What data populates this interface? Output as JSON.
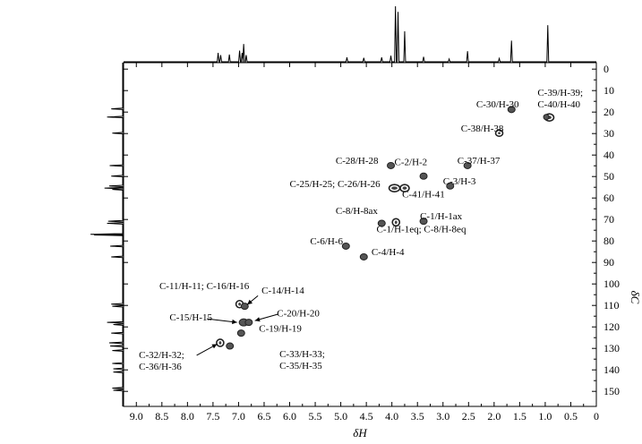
{
  "chart_data": {
    "type": "scatter",
    "title": "",
    "xlabel": "δH",
    "ylabel": "δC",
    "xlim": [
      9.25,
      0
    ],
    "ylim": [
      -3,
      157
    ],
    "x_ticks": [
      "9.0",
      "8.5",
      "8.0",
      "7.5",
      "7.0",
      "6.5",
      "6.0",
      "5.5",
      "5.0",
      "4.5",
      "4.0",
      "3.5",
      "3.0",
      "2.5",
      "2.0",
      "1.5",
      "1.0",
      "0.5",
      "0"
    ],
    "x_tick_values": [
      9.0,
      8.5,
      8.0,
      7.5,
      7.0,
      6.5,
      6.0,
      5.5,
      5.0,
      4.5,
      4.0,
      3.5,
      3.0,
      2.5,
      2.0,
      1.5,
      1.0,
      0.5,
      0
    ],
    "y_ticks": [
      "0",
      "10",
      "20",
      "30",
      "40",
      "50",
      "60",
      "70",
      "80",
      "90",
      "100",
      "110",
      "120",
      "130",
      "140",
      "150"
    ],
    "y_tick_values": [
      0,
      10,
      20,
      30,
      40,
      50,
      60,
      70,
      80,
      90,
      100,
      110,
      120,
      130,
      140,
      150
    ],
    "points": [
      {
        "x": 0.92,
        "y": 22.5,
        "rx": 5,
        "ry": 4,
        "ring": true
      },
      {
        "x": 0.98,
        "y": 22.3,
        "rx": 3,
        "ry": 3,
        "ring": false
      },
      {
        "x": 1.66,
        "y": 18.8,
        "rx": 4,
        "ry": 3.5,
        "ring": false
      },
      {
        "x": 1.9,
        "y": 29.8,
        "rx": 4,
        "ry": 3.5,
        "ring": true
      },
      {
        "x": 2.52,
        "y": 44.9,
        "rx": 4,
        "ry": 3.5,
        "ring": false
      },
      {
        "x": 4.02,
        "y": 44.9,
        "rx": 4,
        "ry": 3.5,
        "ring": false
      },
      {
        "x": 3.38,
        "y": 49.8,
        "rx": 4,
        "ry": 3.5,
        "ring": false
      },
      {
        "x": 2.86,
        "y": 54.4,
        "rx": 4,
        "ry": 3.5,
        "ring": false
      },
      {
        "x": 3.95,
        "y": 55.4,
        "rx": 6,
        "ry": 4,
        "ring": true
      },
      {
        "x": 3.75,
        "y": 55.4,
        "rx": 5,
        "ry": 4,
        "ring": true
      },
      {
        "x": 4.2,
        "y": 71.8,
        "rx": 4,
        "ry": 3.5,
        "ring": false
      },
      {
        "x": 3.92,
        "y": 71.3,
        "rx": 4,
        "ry": 4,
        "ring": true
      },
      {
        "x": 3.38,
        "y": 70.8,
        "rx": 4,
        "ry": 3.5,
        "ring": false
      },
      {
        "x": 4.9,
        "y": 82.4,
        "rx": 4,
        "ry": 3.5,
        "ring": false
      },
      {
        "x": 4.55,
        "y": 87.4,
        "rx": 4,
        "ry": 3.5,
        "ring": false
      },
      {
        "x": 6.98,
        "y": 109.4,
        "rx": 4,
        "ry": 4,
        "ring": true
      },
      {
        "x": 6.88,
        "y": 110.4,
        "rx": 4,
        "ry": 3.5,
        "ring": false
      },
      {
        "x": 6.9,
        "y": 117.9,
        "rx": 5,
        "ry": 4,
        "ring": false
      },
      {
        "x": 6.8,
        "y": 117.9,
        "rx": 4,
        "ry": 3.5,
        "ring": false
      },
      {
        "x": 6.95,
        "y": 122.9,
        "rx": 4,
        "ry": 3.5,
        "ring": false
      },
      {
        "x": 7.36,
        "y": 127.4,
        "rx": 4,
        "ry": 4,
        "ring": true
      },
      {
        "x": 7.17,
        "y": 128.9,
        "rx": 4,
        "ry": 3.5,
        "ring": false
      }
    ],
    "annotations": [
      {
        "text": "C-39/H-39;",
        "x": 1.15,
        "y": 12.5
      },
      {
        "text": "C-40/H-40",
        "x": 1.15,
        "y": 17.9
      },
      {
        "text": "C-30/H-30",
        "x": 2.35,
        "y": 17.9
      },
      {
        "text": "C-38/H-38",
        "x": 2.65,
        "y": 29.0
      },
      {
        "text": "C-28/H-28",
        "x": 5.1,
        "y": 44.0
      },
      {
        "text": "C-2/H-2",
        "x": 3.95,
        "y": 44.8
      },
      {
        "text": "C-37/H-37",
        "x": 2.72,
        "y": 44.0
      },
      {
        "text": "C-3/H-3",
        "x": 3.0,
        "y": 53.7
      },
      {
        "text": "C-25/H-25; C-26/H-26",
        "x": 6.0,
        "y": 54.9
      },
      {
        "text": "C-41/H-41",
        "x": 3.8,
        "y": 59.7
      },
      {
        "text": "C-8/H-8ax",
        "x": 5.1,
        "y": 67.4
      },
      {
        "text": "C-1/H-1ax",
        "x": 3.45,
        "y": 70.0
      },
      {
        "text": "C-1/H-1eq; C-8/H-8eq",
        "x": 4.3,
        "y": 76.0
      },
      {
        "text": "C-6/H-6",
        "x": 5.6,
        "y": 81.5
      },
      {
        "text": "C-4/H-4",
        "x": 4.4,
        "y": 86.6
      },
      {
        "text": "C-11/H-11; C-16/H-16",
        "x": 8.55,
        "y": 102.5
      },
      {
        "text": "C-14/H-14",
        "x": 6.55,
        "y": 104.6
      },
      {
        "text": "C-20/H-20",
        "x": 6.25,
        "y": 115.1
      },
      {
        "text": "C-15/H-15",
        "x": 8.35,
        "y": 117.1
      },
      {
        "text": "C-19/H-19",
        "x": 6.6,
        "y": 122.3
      },
      {
        "text": "C-32/H-32;",
        "x": 8.95,
        "y": 134.6
      },
      {
        "text": "C-36/H-36",
        "x": 8.95,
        "y": 140.0
      },
      {
        "text": "C-33/H-33;",
        "x": 6.2,
        "y": 134.1
      },
      {
        "text": "C-35/H-35",
        "x": 6.2,
        "y": 139.4
      }
    ],
    "arrows": [
      {
        "from": [
          6.62,
          105.5
        ],
        "to": [
          6.83,
          109.6
        ]
      },
      {
        "from": [
          6.23,
          114.1
        ],
        "to": [
          6.68,
          117.1
        ]
      },
      {
        "from": [
          7.62,
          116.2
        ],
        "to": [
          7.03,
          117.9
        ]
      },
      {
        "from": [
          7.82,
          133.2
        ],
        "to": [
          7.42,
          128.0
        ]
      }
    ],
    "proton_1d": [
      {
        "x": 7.4,
        "h": 0.16
      },
      {
        "x": 7.35,
        "h": 0.12
      },
      {
        "x": 7.18,
        "h": 0.13
      },
      {
        "x": 6.98,
        "h": 0.2
      },
      {
        "x": 6.93,
        "h": 0.16
      },
      {
        "x": 6.9,
        "h": 0.32
      },
      {
        "x": 6.85,
        "h": 0.12
      },
      {
        "x": 4.88,
        "h": 0.08
      },
      {
        "x": 4.55,
        "h": 0.07
      },
      {
        "x": 4.2,
        "h": 0.08
      },
      {
        "x": 4.02,
        "h": 0.11
      },
      {
        "x": 3.93,
        "h": 1.0
      },
      {
        "x": 3.88,
        "h": 0.9
      },
      {
        "x": 3.75,
        "h": 0.55
      },
      {
        "x": 3.38,
        "h": 0.09
      },
      {
        "x": 2.88,
        "h": 0.05
      },
      {
        "x": 2.52,
        "h": 0.19
      },
      {
        "x": 1.9,
        "h": 0.06
      },
      {
        "x": 1.66,
        "h": 0.38
      },
      {
        "x": 0.95,
        "h": 0.66
      }
    ],
    "carbon_1d": [
      {
        "y": 18.5,
        "h": 0.22
      },
      {
        "y": 22.3,
        "h": 0.3
      },
      {
        "y": 29.8,
        "h": 0.2
      },
      {
        "y": 44.9,
        "h": 0.25
      },
      {
        "y": 49.8,
        "h": 0.22
      },
      {
        "y": 54.4,
        "h": 0.26
      },
      {
        "y": 55.4,
        "h": 0.35
      },
      {
        "y": 56.0,
        "h": 0.2
      },
      {
        "y": 70.8,
        "h": 0.28
      },
      {
        "y": 71.8,
        "h": 0.3
      },
      {
        "y": 76.9,
        "h": 0.62
      },
      {
        "y": 77.2,
        "h": 0.55
      },
      {
        "y": 82.4,
        "h": 0.24
      },
      {
        "y": 87.4,
        "h": 0.22
      },
      {
        "y": 109.4,
        "h": 0.22
      },
      {
        "y": 110.4,
        "h": 0.2
      },
      {
        "y": 117.9,
        "h": 0.3
      },
      {
        "y": 118.9,
        "h": 0.18
      },
      {
        "y": 122.9,
        "h": 0.22
      },
      {
        "y": 127.4,
        "h": 0.26
      },
      {
        "y": 128.9,
        "h": 0.24
      },
      {
        "y": 131.0,
        "h": 0.2
      },
      {
        "y": 137.0,
        "h": 0.2
      },
      {
        "y": 139.5,
        "h": 0.18
      },
      {
        "y": 141.0,
        "h": 0.18
      },
      {
        "y": 148.5,
        "h": 0.2
      },
      {
        "y": 149.5,
        "h": 0.18
      }
    ]
  }
}
